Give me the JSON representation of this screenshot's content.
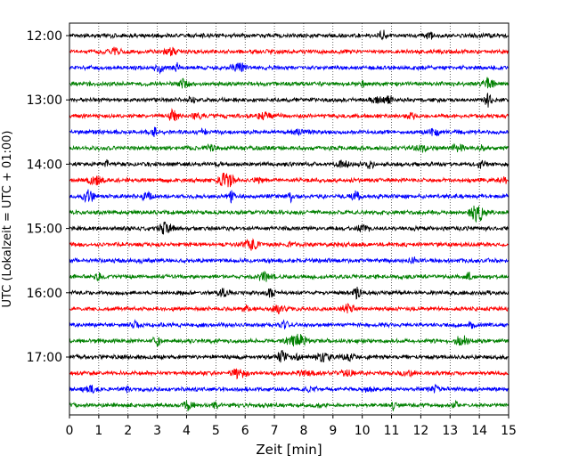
{
  "chart_data": {
    "type": "line",
    "title": "",
    "xlabel": "Zeit  [min]",
    "ylabel": "UTC (Lokalzeit = UTC + 01:00)",
    "xlim": [
      0,
      15
    ],
    "x_ticks": [
      "0",
      "1",
      "2",
      "3",
      "4",
      "5",
      "6",
      "7",
      "8",
      "9",
      "10",
      "11",
      "12",
      "13",
      "14",
      "15"
    ],
    "y_tick_labels": [
      "12:00",
      "13:00",
      "14:00",
      "15:00",
      "16:00",
      "17:00"
    ],
    "grid": "vertical dotted",
    "trace_interval_minutes": 15,
    "start_time": "12:00",
    "colors": [
      "#000000",
      "#ff0000",
      "#0000ff",
      "#008000"
    ],
    "traces": [
      {
        "time": "12:00",
        "color": "#000000"
      },
      {
        "time": "12:15",
        "color": "#ff0000"
      },
      {
        "time": "12:30",
        "color": "#0000ff"
      },
      {
        "time": "12:45",
        "color": "#008000"
      },
      {
        "time": "13:00",
        "color": "#000000"
      },
      {
        "time": "13:15",
        "color": "#ff0000"
      },
      {
        "time": "13:30",
        "color": "#0000ff"
      },
      {
        "time": "13:45",
        "color": "#008000"
      },
      {
        "time": "14:00",
        "color": "#000000"
      },
      {
        "time": "14:15",
        "color": "#ff0000"
      },
      {
        "time": "14:30",
        "color": "#0000ff"
      },
      {
        "time": "14:45",
        "color": "#008000"
      },
      {
        "time": "15:00",
        "color": "#000000"
      },
      {
        "time": "15:15",
        "color": "#ff0000"
      },
      {
        "time": "15:30",
        "color": "#0000ff"
      },
      {
        "time": "15:45",
        "color": "#008000"
      },
      {
        "time": "16:00",
        "color": "#000000"
      },
      {
        "time": "16:15",
        "color": "#ff0000"
      },
      {
        "time": "16:30",
        "color": "#0000ff"
      },
      {
        "time": "16:45",
        "color": "#008000"
      },
      {
        "time": "17:00",
        "color": "#000000"
      },
      {
        "time": "17:15",
        "color": "#ff0000"
      },
      {
        "time": "17:30",
        "color": "#0000ff"
      },
      {
        "time": "17:45",
        "color": "#008000"
      }
    ]
  }
}
